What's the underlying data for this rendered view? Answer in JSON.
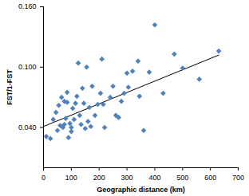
{
  "chart_data": {
    "type": "scatter",
    "x_label": "Geographic distance (km)",
    "y_label": "FST/1-FST",
    "color": "#4f81bd",
    "marker": "diamond",
    "xlim": [
      0,
      700
    ],
    "xticks": [
      0,
      100,
      200,
      300,
      400,
      500,
      600,
      700
    ],
    "ylim": [
      0,
      0.16
    ],
    "yticks": [
      {
        "value": 0.04,
        "label": "0.040"
      },
      {
        "value": 0.1,
        "label": "0.100"
      },
      {
        "value": 0.16,
        "label": "0.160"
      }
    ],
    "x": [
      10,
      25,
      35,
      45,
      50,
      55,
      60,
      65,
      70,
      75,
      75,
      80,
      85,
      85,
      90,
      95,
      100,
      100,
      105,
      110,
      115,
      120,
      125,
      130,
      135,
      140,
      145,
      150,
      155,
      160,
      165,
      170,
      175,
      185,
      195,
      205,
      210,
      215,
      220,
      240,
      250,
      260,
      270,
      280,
      290,
      300,
      305,
      320,
      340,
      345,
      360,
      380,
      400,
      430,
      470,
      500,
      560,
      630
    ],
    "values": [
      0.031,
      0.029,
      0.048,
      0.055,
      0.037,
      0.062,
      0.042,
      0.07,
      0.04,
      0.066,
      0.043,
      0.049,
      0.065,
      0.075,
      0.03,
      0.044,
      0.036,
      0.04,
      0.059,
      0.048,
      0.064,
      0.071,
      0.104,
      0.052,
      0.043,
      0.079,
      0.064,
      0.039,
      0.1,
      0.046,
      0.06,
      0.041,
      0.081,
      0.052,
      0.063,
      0.074,
      0.108,
      0.063,
      0.04,
      0.07,
      0.081,
      0.052,
      0.05,
      0.066,
      0.074,
      0.094,
      0.08,
      0.096,
      0.106,
      0.071,
      0.037,
      0.095,
      0.142,
      0.074,
      0.113,
      0.099,
      0.088,
      0.116
    ],
    "trend_line": {
      "x": [
        0,
        630
      ],
      "values": [
        0.041,
        0.112
      ]
    }
  }
}
